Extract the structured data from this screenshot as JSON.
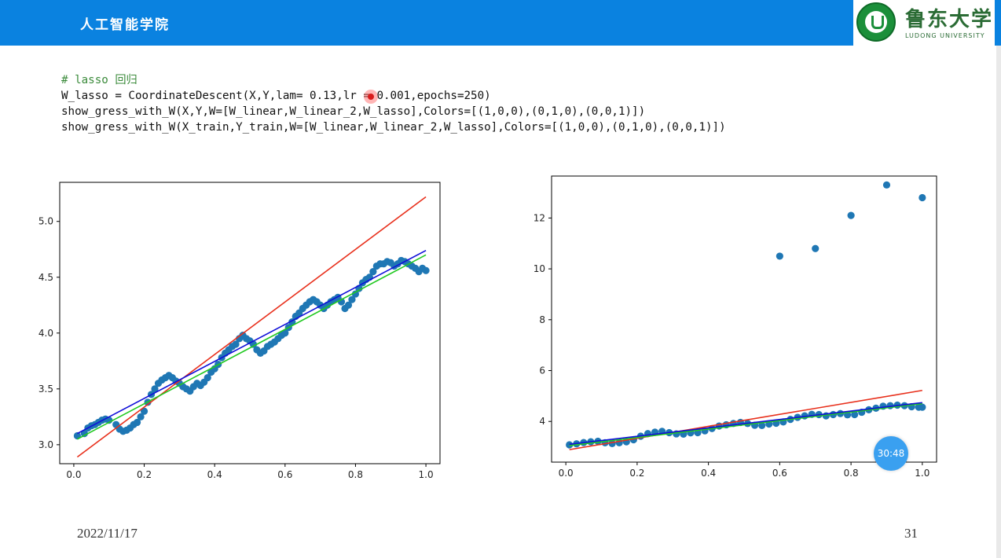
{
  "header": {
    "title": "人工智能学院",
    "logo_cn": "鲁东大学",
    "logo_en": "LUDONG UNIVERSITY"
  },
  "code": {
    "line1_comment": "# lasso 回归",
    "line2": "W_lasso = CoordinateDescent(X,Y,lam= 0.13,lr = 0.001,epochs=250)",
    "line3": "show_gress_with_W(X,Y,W=[W_linear,W_linear_2,W_lasso],Colors=[(1,0,0),(0,1,0),(0,0,1)])",
    "line4": "show_gress_with_W(X_train,Y_train,W=[W_linear,W_linear_2,W_lasso],Colors=[(1,0,0),(0,1,0),(0,0,1)])"
  },
  "footer": {
    "date": "2022/11/17",
    "page": "31"
  },
  "timer": "30:48",
  "colors": {
    "header_bg": "#0a82e0",
    "scatter": "#1f77b4",
    "line_red": "#e8301c",
    "line_green": "#22c922",
    "line_blue": "#1010d8"
  },
  "chart_data": [
    {
      "type": "scatter",
      "xlim": [
        -0.04,
        1.04
      ],
      "ylim": [
        2.83,
        5.35
      ],
      "xticks": [
        "0.0",
        "0.2",
        "0.4",
        "0.6",
        "0.8",
        "1.0"
      ],
      "xtick_values": [
        0.0,
        0.2,
        0.4,
        0.6,
        0.8,
        1.0
      ],
      "yticks": [
        "3.0",
        "3.5",
        "4.0",
        "4.5",
        "5.0"
      ],
      "ytick_values": [
        3.0,
        3.5,
        4.0,
        4.5,
        5.0
      ],
      "points_x": [
        0.01,
        0.03,
        0.04,
        0.05,
        0.06,
        0.07,
        0.08,
        0.09,
        0.1,
        0.12,
        0.13,
        0.14,
        0.15,
        0.16,
        0.17,
        0.18,
        0.19,
        0.2,
        0.21,
        0.22,
        0.23,
        0.24,
        0.25,
        0.26,
        0.27,
        0.28,
        0.29,
        0.3,
        0.31,
        0.32,
        0.33,
        0.34,
        0.35,
        0.36,
        0.37,
        0.38,
        0.39,
        0.4,
        0.41,
        0.42,
        0.43,
        0.44,
        0.45,
        0.46,
        0.47,
        0.48,
        0.49,
        0.5,
        0.51,
        0.52,
        0.53,
        0.54,
        0.55,
        0.56,
        0.57,
        0.58,
        0.59,
        0.6,
        0.61,
        0.62,
        0.63,
        0.64,
        0.65,
        0.66,
        0.67,
        0.68,
        0.69,
        0.7,
        0.71,
        0.72,
        0.73,
        0.74,
        0.75,
        0.76,
        0.77,
        0.78,
        0.79,
        0.8,
        0.81,
        0.82,
        0.83,
        0.84,
        0.85,
        0.86,
        0.87,
        0.88,
        0.89,
        0.9,
        0.91,
        0.92,
        0.93,
        0.94,
        0.95,
        0.96,
        0.97,
        0.98,
        0.99,
        1.0
      ],
      "points_y": [
        3.08,
        3.1,
        3.15,
        3.17,
        3.18,
        3.2,
        3.22,
        3.23,
        3.22,
        3.18,
        3.14,
        3.12,
        3.13,
        3.15,
        3.18,
        3.2,
        3.25,
        3.3,
        3.38,
        3.45,
        3.5,
        3.55,
        3.58,
        3.6,
        3.62,
        3.6,
        3.57,
        3.55,
        3.52,
        3.5,
        3.48,
        3.52,
        3.55,
        3.53,
        3.56,
        3.6,
        3.65,
        3.68,
        3.72,
        3.78,
        3.82,
        3.85,
        3.88,
        3.9,
        3.95,
        3.98,
        3.95,
        3.93,
        3.9,
        3.85,
        3.82,
        3.84,
        3.88,
        3.9,
        3.92,
        3.95,
        3.98,
        4.0,
        4.05,
        4.1,
        4.15,
        4.18,
        4.22,
        4.25,
        4.28,
        4.3,
        4.28,
        4.25,
        4.22,
        4.25,
        4.28,
        4.3,
        4.32,
        4.28,
        4.22,
        4.25,
        4.3,
        4.35,
        4.4,
        4.45,
        4.48,
        4.5,
        4.55,
        4.6,
        4.62,
        4.62,
        4.64,
        4.63,
        4.6,
        4.62,
        4.65,
        4.64,
        4.62,
        4.6,
        4.58,
        4.55,
        4.58,
        4.56
      ],
      "lines": [
        {
          "color": "#e8301c",
          "x": [
            0.01,
            1.0
          ],
          "y": [
            2.89,
            5.22
          ]
        },
        {
          "color": "#22c922",
          "x": [
            0.01,
            1.0
          ],
          "y": [
            3.05,
            4.7
          ]
        },
        {
          "color": "#1010d8",
          "x": [
            0.01,
            1.0
          ],
          "y": [
            3.1,
            4.74
          ]
        }
      ]
    },
    {
      "type": "scatter",
      "xlim": [
        -0.04,
        1.04
      ],
      "ylim": [
        2.4,
        13.65
      ],
      "xticks": [
        "0.0",
        "0.2",
        "0.4",
        "0.6",
        "0.8",
        "1.0"
      ],
      "xtick_values": [
        0.0,
        0.2,
        0.4,
        0.6,
        0.8,
        1.0
      ],
      "yticks": [
        "4",
        "6",
        "8",
        "10",
        "12"
      ],
      "ytick_values": [
        4,
        6,
        8,
        10,
        12
      ],
      "points_x": [
        0.01,
        0.03,
        0.05,
        0.07,
        0.09,
        0.11,
        0.13,
        0.15,
        0.17,
        0.19,
        0.21,
        0.23,
        0.25,
        0.27,
        0.29,
        0.31,
        0.33,
        0.35,
        0.37,
        0.39,
        0.41,
        0.43,
        0.45,
        0.47,
        0.49,
        0.51,
        0.53,
        0.55,
        0.57,
        0.59,
        0.61,
        0.63,
        0.65,
        0.67,
        0.69,
        0.71,
        0.73,
        0.75,
        0.77,
        0.79,
        0.81,
        0.83,
        0.85,
        0.87,
        0.89,
        0.91,
        0.93,
        0.95,
        0.97,
        0.99,
        1.0,
        0.6,
        0.7,
        0.8,
        0.9,
        1.0
      ],
      "points_y": [
        3.08,
        3.12,
        3.17,
        3.2,
        3.22,
        3.16,
        3.13,
        3.16,
        3.2,
        3.28,
        3.42,
        3.52,
        3.58,
        3.61,
        3.56,
        3.51,
        3.5,
        3.55,
        3.56,
        3.63,
        3.72,
        3.82,
        3.87,
        3.92,
        3.96,
        3.92,
        3.85,
        3.84,
        3.9,
        3.93,
        3.98,
        4.08,
        4.16,
        4.22,
        4.28,
        4.27,
        4.22,
        4.27,
        4.31,
        4.26,
        4.27,
        4.36,
        4.46,
        4.52,
        4.6,
        4.62,
        4.64,
        4.62,
        4.58,
        4.56,
        4.56,
        10.5,
        10.8,
        12.1,
        13.3,
        12.8
      ],
      "lines": [
        {
          "color": "#e8301c",
          "x": [
            0.01,
            1.0
          ],
          "y": [
            2.89,
            5.22
          ]
        },
        {
          "color": "#22c922",
          "x": [
            0.01,
            1.0
          ],
          "y": [
            3.05,
            4.7
          ]
        },
        {
          "color": "#1010d8",
          "x": [
            0.01,
            1.0
          ],
          "y": [
            3.1,
            4.74
          ]
        }
      ]
    }
  ]
}
